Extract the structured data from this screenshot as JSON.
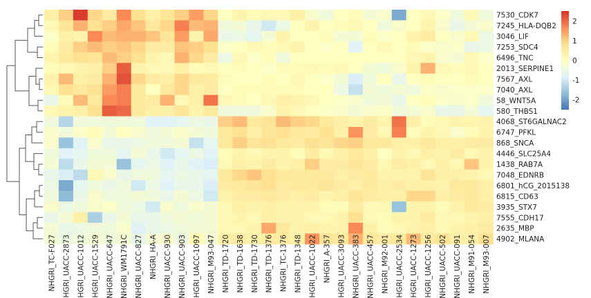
{
  "chart_data": {
    "type": "heatmap",
    "title": "",
    "xlabel": "",
    "ylabel": "",
    "columns": [
      "NHGRI_TC-F027",
      "NHGRI_UACC-2873",
      "NHGRI_UACC-1012",
      "NHGRI_UACC-1529",
      "NHGRI_UACC-647",
      "NHGRI_WM1791C",
      "NHGRI_UACC-827",
      "NHGRI_HA-A",
      "NHGRI_UACC-930",
      "NHGRI_UACC-903",
      "NHGRI_UACC-1097",
      "NHGRI_M93-047",
      "NHGRI_TD-1720",
      "NHGRI_TD-1638",
      "NHGRI_TD-1730",
      "NHGRI_TD-1376",
      "NHGRI_TC-1376",
      "NHGRI_TD-1348",
      "NHGRI_UACC-1022",
      "NHGRI_A-357",
      "NHGRI_UACC-3093",
      "NHGRI_UACC-383",
      "NHGRI_UACC-457",
      "NHGRI_M92-001",
      "NHGRI_UACC-2534",
      "NHGRI_UACC-1273",
      "NHGRI_UACC-1256",
      "NHGRI_UACC-502",
      "NHGRI_UACC-091",
      "NHGRI_M91-054",
      "NHGRI_M93-007"
    ],
    "rows": [
      "7530_CDK7",
      "7245_HLA-DQB2",
      "3046_LIF",
      "7253_SDC4",
      "6496_TNC",
      "2013_SERPINE1",
      "7567_AXL",
      "7040_AXL",
      "58_WNT5A",
      "580_THBS1",
      "4068_ST6GALNAC2",
      "6747_PFKL",
      "868_SNCA",
      "4446_SLC25A4",
      "1438_RAB7A",
      "7048_EDNRB",
      "6801_hCG_2015138",
      "6815_CD63",
      "3935_STX7",
      "7555_CDH17",
      "2635_MBP",
      "4902_MLANA"
    ],
    "values": [
      [
        0.4,
        1.0,
        2.4,
        0.9,
        0.5,
        1.7,
        0.8,
        0.4,
        0.7,
        1.0,
        1.5,
        0.9,
        0.0,
        0.3,
        0.1,
        0.2,
        0.2,
        0.4,
        -0.2,
        -0.4,
        0.0,
        0.1,
        -0.3,
        -0.2,
        -1.9,
        0.0,
        0.2,
        -0.1,
        -0.4,
        0.2,
        -0.4
      ],
      [
        0.2,
        0.7,
        1.3,
        0.8,
        1.0,
        1.4,
        1.1,
        0.6,
        0.9,
        1.8,
        1.2,
        1.3,
        -0.4,
        -0.3,
        -0.6,
        -1.0,
        -0.5,
        0.0,
        0.3,
        0.0,
        0.1,
        0.2,
        0.0,
        -0.4,
        -0.2,
        0.0,
        0.3,
        -0.2,
        -0.6,
        -0.3,
        -0.2
      ],
      [
        -0.1,
        0.4,
        0.3,
        1.7,
        1.2,
        1.3,
        1.3,
        1.1,
        0.7,
        1.5,
        0.3,
        1.4,
        -0.6,
        -0.5,
        -0.7,
        -0.3,
        0.3,
        0.0,
        0.0,
        0.1,
        -0.3,
        -0.3,
        0.1,
        -0.1,
        0.0,
        0.3,
        0.5,
        0.0,
        -0.2,
        0.2,
        -0.5
      ],
      [
        0.1,
        0.5,
        1.0,
        1.2,
        1.0,
        1.1,
        0.9,
        0.5,
        0.5,
        1.1,
        1.0,
        0.8,
        -0.1,
        0.0,
        0.2,
        0.1,
        0.2,
        0.3,
        0.0,
        -0.1,
        0.0,
        -0.8,
        0.0,
        0.2,
        0.0,
        0.1,
        -0.1,
        -0.2,
        -0.1,
        -0.6,
        -0.5
      ],
      [
        0.3,
        0.6,
        0.8,
        0.7,
        1.2,
        1.0,
        0.8,
        0.3,
        0.2,
        1.3,
        0.9,
        0.5,
        -0.5,
        0.2,
        -0.1,
        0.1,
        -0.4,
        0.0,
        0.0,
        0.0,
        0.0,
        0.0,
        0.0,
        0.0,
        0.0,
        0.2,
        0.3,
        -0.2,
        -0.3,
        0.2,
        -0.1
      ],
      [
        0.1,
        0.2,
        0.3,
        0.4,
        1.0,
        2.1,
        0.3,
        0.2,
        0.2,
        0.4,
        0.1,
        0.2,
        0.0,
        0.1,
        0.0,
        -0.1,
        0.1,
        0.1,
        0.2,
        0.1,
        0.2,
        0.0,
        -0.3,
        -0.4,
        -0.2,
        0.3,
        1.3,
        0.2,
        0.1,
        0.2,
        0.0
      ],
      [
        0.3,
        1.2,
        0.4,
        0.5,
        1.3,
        2.2,
        0.9,
        0.5,
        0.4,
        0.9,
        0.6,
        0.5,
        0.1,
        0.0,
        0.0,
        0.1,
        0.0,
        0.2,
        0.0,
        -0.1,
        -0.3,
        -0.9,
        -0.4,
        0.0,
        -0.6,
        0.0,
        0.1,
        0.0,
        0.0,
        0.1,
        0.0
      ],
      [
        0.2,
        0.8,
        0.6,
        0.8,
        1.5,
        1.8,
        0.6,
        0.0,
        0.6,
        0.9,
        0.4,
        0.5,
        0.0,
        0.1,
        0.1,
        0.1,
        0.1,
        0.1,
        0.0,
        0.0,
        -0.5,
        -1.1,
        -0.3,
        -0.4,
        -0.3,
        -0.4,
        -0.1,
        -0.2,
        -0.1,
        -0.1,
        -0.1
      ],
      [
        -0.6,
        0.1,
        1.2,
        0.6,
        1.7,
        1.8,
        0.6,
        0.5,
        1.3,
        0.2,
        0.4,
        1.9,
        0.2,
        0.1,
        0.0,
        0.2,
        0.4,
        0.3,
        0.2,
        0.0,
        -0.1,
        -0.2,
        -0.4,
        -0.3,
        -0.6,
        0.0,
        0.1,
        -0.1,
        -0.2,
        -0.1,
        -0.4
      ],
      [
        0.2,
        0.3,
        0.4,
        0.8,
        2.1,
        2.0,
        0.6,
        0.4,
        0.4,
        0.7,
        0.3,
        0.6,
        -0.4,
        -0.4,
        -0.4,
        -0.2,
        0.3,
        0.2,
        0.0,
        -0.1,
        -0.2,
        -0.3,
        -0.2,
        -0.1,
        -0.4,
        -0.3,
        -0.2,
        -0.6,
        -0.6,
        -0.3,
        -0.7
      ],
      [
        -0.4,
        -1.3,
        -0.4,
        -0.4,
        -0.4,
        -0.4,
        -0.4,
        -0.8,
        -0.8,
        -0.7,
        -0.5,
        -0.6,
        1.0,
        1.2,
        0.6,
        0.7,
        1.2,
        1.0,
        0.9,
        0.6,
        0.4,
        0.3,
        0.5,
        0.3,
        1.9,
        0.4,
        0.1,
        0.2,
        0.3,
        0.3,
        0.3
      ],
      [
        -0.2,
        -0.4,
        -0.1,
        0.1,
        -0.3,
        0.0,
        -0.2,
        -0.4,
        -0.3,
        -0.2,
        -0.3,
        -0.4,
        0.6,
        0.8,
        0.4,
        0.7,
        0.8,
        0.6,
        0.5,
        0.8,
        0.4,
        1.6,
        0.5,
        0.2,
        1.8,
        0.1,
        0.3,
        0.2,
        -0.2,
        0.1,
        0.3
      ],
      [
        -0.2,
        -1.6,
        -0.8,
        -0.2,
        -0.6,
        -0.6,
        -0.5,
        -0.4,
        -0.4,
        -0.3,
        -1.1,
        -0.7,
        0.6,
        1.0,
        0.7,
        0.8,
        0.6,
        0.5,
        0.8,
        0.7,
        0.9,
        1.0,
        0.6,
        0.6,
        0.4,
        0.4,
        0.6,
        0.4,
        0.4,
        0.5,
        0.5
      ],
      [
        -0.4,
        -0.8,
        -0.7,
        -0.4,
        -0.4,
        -0.7,
        -0.3,
        -0.6,
        -1.0,
        -0.7,
        -0.5,
        -0.8,
        0.1,
        0.3,
        0.2,
        0.3,
        0.3,
        0.1,
        0.5,
        0.2,
        0.4,
        0.6,
        0.4,
        0.0,
        0.3,
        0.2,
        0.4,
        0.3,
        0.5,
        0.2,
        0.3
      ],
      [
        -0.3,
        -1.2,
        -0.6,
        -0.3,
        -0.3,
        -1.6,
        -0.7,
        -0.5,
        -0.8,
        -0.6,
        -0.8,
        -0.9,
        0.2,
        0.4,
        0.3,
        0.5,
        0.3,
        0.4,
        1.0,
        0.5,
        0.5,
        0.7,
        0.5,
        0.2,
        0.5,
        0.4,
        0.2,
        0.4,
        0.2,
        1.1,
        0.3
      ],
      [
        -0.6,
        -0.9,
        -1.2,
        0.2,
        -0.2,
        -0.6,
        -0.4,
        -0.4,
        -0.7,
        -0.5,
        -0.6,
        -0.7,
        0.6,
        0.9,
        1.1,
        0.8,
        0.6,
        0.6,
        0.6,
        0.6,
        0.4,
        0.5,
        0.6,
        0.3,
        0.3,
        0.3,
        0.7,
        0.4,
        0.4,
        0.3,
        0.2
      ],
      [
        -0.5,
        -1.9,
        -0.7,
        -0.4,
        -0.6,
        -0.4,
        -1.0,
        -0.5,
        -0.8,
        -0.6,
        -0.6,
        -0.9,
        0.5,
        0.6,
        0.7,
        0.8,
        0.5,
        0.6,
        0.6,
        0.7,
        0.5,
        0.4,
        0.6,
        0.4,
        0.5,
        0.4,
        0.4,
        0.3,
        0.6,
        0.6,
        0.4
      ],
      [
        -0.4,
        -1.7,
        -0.6,
        -0.2,
        -0.4,
        -0.4,
        -0.3,
        -0.4,
        -0.6,
        -0.3,
        -0.5,
        -1.0,
        0.3,
        0.5,
        0.5,
        0.6,
        0.5,
        0.4,
        0.5,
        0.3,
        0.4,
        0.7,
        0.5,
        0.4,
        0.4,
        0.9,
        0.9,
        0.4,
        0.5,
        0.6,
        0.4
      ],
      [
        -0.2,
        -0.5,
        -0.4,
        -0.2,
        -0.1,
        -0.4,
        -0.5,
        -1.0,
        -0.2,
        -0.4,
        -0.2,
        -0.3,
        0.2,
        0.4,
        0.3,
        0.4,
        0.3,
        0.3,
        0.3,
        0.1,
        0.1,
        0.5,
        0.2,
        0.2,
        -1.6,
        0.3,
        0.3,
        0.1,
        0.3,
        0.6,
        0.5
      ],
      [
        -0.6,
        -0.3,
        0.4,
        -1.4,
        -0.6,
        -0.3,
        -0.6,
        -0.6,
        -0.4,
        -0.3,
        -0.4,
        -0.3,
        0.2,
        0.3,
        0.2,
        0.4,
        0.3,
        0.3,
        0.2,
        0.2,
        0.3,
        0.8,
        0.2,
        0.1,
        0.3,
        0.3,
        0.5,
        0.2,
        0.2,
        0.3,
        0.4
      ],
      [
        -0.3,
        -0.6,
        -0.5,
        -0.4,
        -0.4,
        -0.2,
        -0.8,
        -0.6,
        -0.5,
        -0.4,
        -0.3,
        -0.3,
        0.2,
        0.2,
        0.3,
        1.4,
        0.6,
        0.3,
        0.4,
        0.3,
        0.3,
        1.7,
        0.4,
        0.1,
        0.2,
        0.3,
        0.4,
        0.2,
        0.3,
        0.4,
        0.5
      ],
      [
        -0.3,
        -0.5,
        -0.4,
        -0.3,
        -0.4,
        -0.3,
        -0.6,
        -0.3,
        -0.2,
        -0.5,
        0.2,
        -0.3,
        0.4,
        0.5,
        0.3,
        0.5,
        0.5,
        0.4,
        1.6,
        0.7,
        0.6,
        1.3,
        0.6,
        0.5,
        0.6,
        1.2,
        0.5,
        0.7,
        0.4,
        0.4,
        0.8
      ]
    ],
    "colorbar": {
      "ticks": [
        2,
        1,
        0,
        -1,
        -2
      ],
      "tick_labels": [
        "2",
        "1",
        "0",
        "-1",
        "-2"
      ],
      "range": [
        -2.5,
        2.5
      ],
      "colors": [
        "#4575b4",
        "#91bfdb",
        "#e0f3f8",
        "#ffffbf",
        "#fee090",
        "#fc8d59",
        "#d73027"
      ]
    },
    "grid": false,
    "legend": "right"
  }
}
